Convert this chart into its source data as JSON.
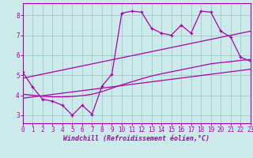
{
  "xlabel": "Windchill (Refroidissement éolien,°C)",
  "xlim": [
    0,
    23
  ],
  "ylim": [
    2.6,
    8.6
  ],
  "xticks": [
    0,
    1,
    2,
    3,
    4,
    5,
    6,
    7,
    8,
    9,
    10,
    11,
    12,
    13,
    14,
    15,
    16,
    17,
    18,
    19,
    20,
    21,
    22,
    23
  ],
  "yticks": [
    3,
    4,
    5,
    6,
    7,
    8
  ],
  "bg_color": "#cceaea",
  "line_color": "#aa00aa",
  "grid_color": "#99cccc",
  "jagged_x": [
    0,
    1,
    2,
    3,
    4,
    5,
    6,
    7,
    8,
    9,
    10,
    11,
    12,
    13,
    14,
    15,
    16,
    17,
    18,
    19,
    20,
    21,
    22,
    23
  ],
  "jagged_y": [
    5.15,
    4.4,
    3.8,
    3.7,
    3.5,
    3.0,
    3.5,
    3.05,
    4.45,
    5.05,
    8.1,
    8.2,
    8.15,
    7.35,
    7.1,
    7.0,
    7.5,
    7.1,
    8.2,
    8.15,
    7.2,
    6.9,
    5.9,
    5.7
  ],
  "lower_line_x": [
    0,
    23
  ],
  "lower_line_y": [
    3.85,
    5.3
  ],
  "upper_line_x": [
    0,
    23
  ],
  "upper_line_y": [
    4.85,
    7.2
  ],
  "smooth_x": [
    0,
    1,
    2,
    3,
    4,
    5,
    6,
    7,
    8,
    9,
    10,
    11,
    12,
    13,
    14,
    15,
    16,
    17,
    18,
    19,
    20,
    21,
    22,
    23
  ],
  "smooth_y": [
    4.05,
    4.0,
    3.95,
    3.92,
    3.92,
    3.94,
    3.98,
    4.05,
    4.18,
    4.35,
    4.52,
    4.67,
    4.82,
    4.96,
    5.07,
    5.17,
    5.27,
    5.37,
    5.47,
    5.57,
    5.63,
    5.68,
    5.74,
    5.79
  ]
}
